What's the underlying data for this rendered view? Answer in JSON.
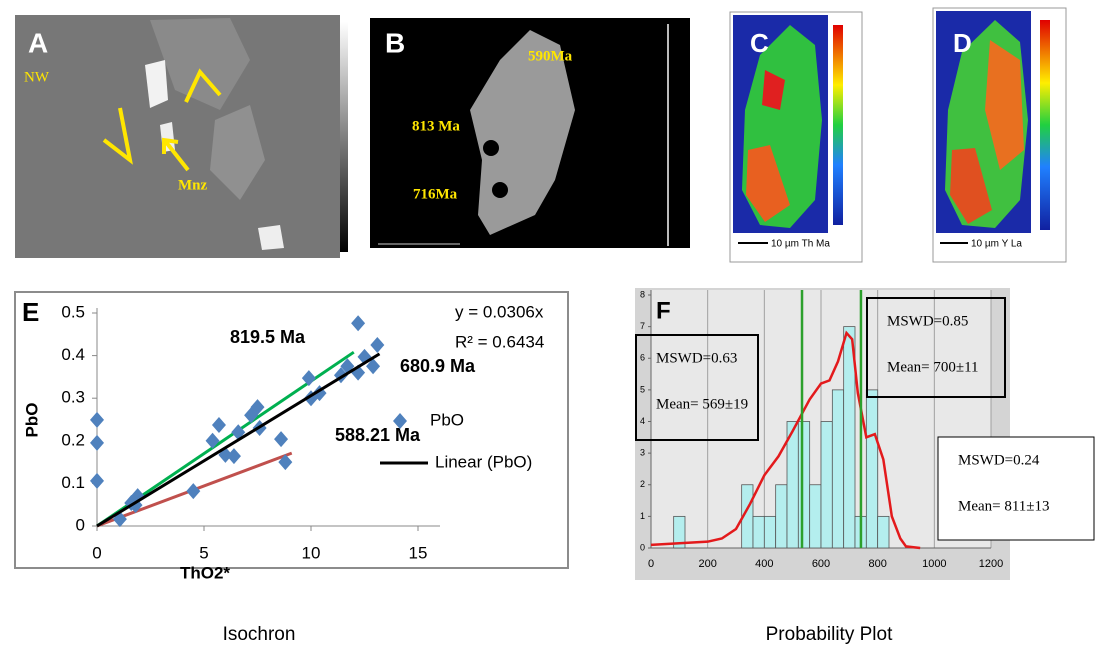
{
  "panels": [
    {
      "label": "A",
      "annotations": [
        "NW",
        "Mnz"
      ]
    },
    {
      "label": "B",
      "annotations": [
        "590Ma",
        "813 Ma",
        "716Ma"
      ]
    },
    {
      "label": "C",
      "annotations": [
        "10 µm Th Ma"
      ]
    },
    {
      "label": "D",
      "annotations": [
        "10 µm Y La"
      ]
    }
  ],
  "chart_data": [
    {
      "type": "scatter",
      "panel_label": "E",
      "caption": "Isochron",
      "xlabel": "ThO2*",
      "ylabel": "PbO",
      "xlim": [
        0,
        15
      ],
      "ylim": [
        0,
        0.5
      ],
      "xticks": [
        0,
        5,
        10,
        15
      ],
      "yticks": [
        0,
        0.1,
        0.2,
        0.3,
        0.4,
        0.5
      ],
      "equation": [
        "y = 0.0306x",
        "R² = 0.6434"
      ],
      "series": [
        {
          "name": "PbO",
          "color": "#4f81bd",
          "x": [
            0,
            0,
            0,
            1.07,
            1.6,
            1.9,
            1.8,
            4.5,
            5.4,
            5.7,
            6.0,
            6.4,
            6.6,
            7.2,
            7.5,
            7.6,
            8.6,
            8.8,
            9.9,
            10,
            10.4,
            11.4,
            11.7,
            12.2,
            12.2,
            12.5,
            12.9,
            13.1
          ],
          "values": [
            0.249,
            0.195,
            0.106,
            0.016,
            0.054,
            0.07,
            0.049,
            0.082,
            0.2,
            0.237,
            0.167,
            0.164,
            0.22,
            0.26,
            0.279,
            0.23,
            0.204,
            0.15,
            0.347,
            0.3,
            0.312,
            0.354,
            0.375,
            0.476,
            0.36,
            0.397,
            0.375,
            0.425
          ]
        },
        {
          "name": "Linear (PbO)",
          "color": "#000000",
          "label": "680.9 Ma",
          "x": [
            0,
            13.2
          ],
          "values": [
            0,
            0.404
          ]
        }
      ],
      "trend_lines": [
        {
          "label": "819.5 Ma",
          "color": "#00b050",
          "x": [
            0,
            12
          ],
          "values": [
            0,
            0.408
          ]
        },
        {
          "label": "588.21 Ma",
          "color": "#c0504d",
          "x": [
            0,
            9.1
          ],
          "values": [
            0,
            0.171
          ]
        }
      ]
    },
    {
      "type": "histogram",
      "panel_label": "F",
      "caption": "Probability Plot",
      "color": "#b4eeee",
      "bins": [
        80,
        120,
        160,
        200,
        240,
        280,
        320,
        360,
        400,
        440,
        480,
        520,
        560,
        600,
        640,
        680,
        720,
        760,
        800,
        840
      ],
      "values": [
        1,
        0,
        0,
        0,
        0,
        0,
        2,
        1,
        1,
        2,
        4,
        4,
        2,
        4,
        5,
        7,
        1,
        5,
        1
      ],
      "xlim": [
        0,
        1200
      ],
      "ylim": [
        0,
        8
      ],
      "xticks": [
        0,
        200,
        400,
        600,
        800,
        1000,
        1200
      ],
      "yticks": [
        0,
        1,
        2,
        3,
        4,
        5,
        6,
        7,
        8
      ],
      "grid": true,
      "curve": {
        "color": "#e31a1c",
        "x": [
          0,
          100,
          200,
          250,
          300,
          350,
          400,
          450,
          500,
          530,
          560,
          600,
          630,
          660,
          690,
          710,
          730,
          760,
          790,
          820,
          850,
          880,
          900,
          950
        ],
        "values": [
          0.1,
          0.15,
          0.2,
          0.3,
          0.6,
          1.4,
          2.3,
          2.9,
          3.7,
          4.2,
          4.7,
          5.2,
          5.3,
          5.9,
          6.8,
          6.6,
          4.9,
          3.5,
          3.6,
          2.8,
          1.0,
          0.3,
          0.05,
          0
        ]
      },
      "mean_lines": {
        "color": "#2ca02c",
        "x": [
          533,
          741
        ]
      },
      "boxes": [
        {
          "lines": [
            "MSWD=0.63",
            "Mean= 569±19"
          ]
        },
        {
          "lines": [
            "MSWD=0.85",
            "Mean= 700±11"
          ]
        },
        {
          "lines": [
            "MSWD=0.24",
            "Mean= 811±13"
          ]
        }
      ]
    }
  ]
}
